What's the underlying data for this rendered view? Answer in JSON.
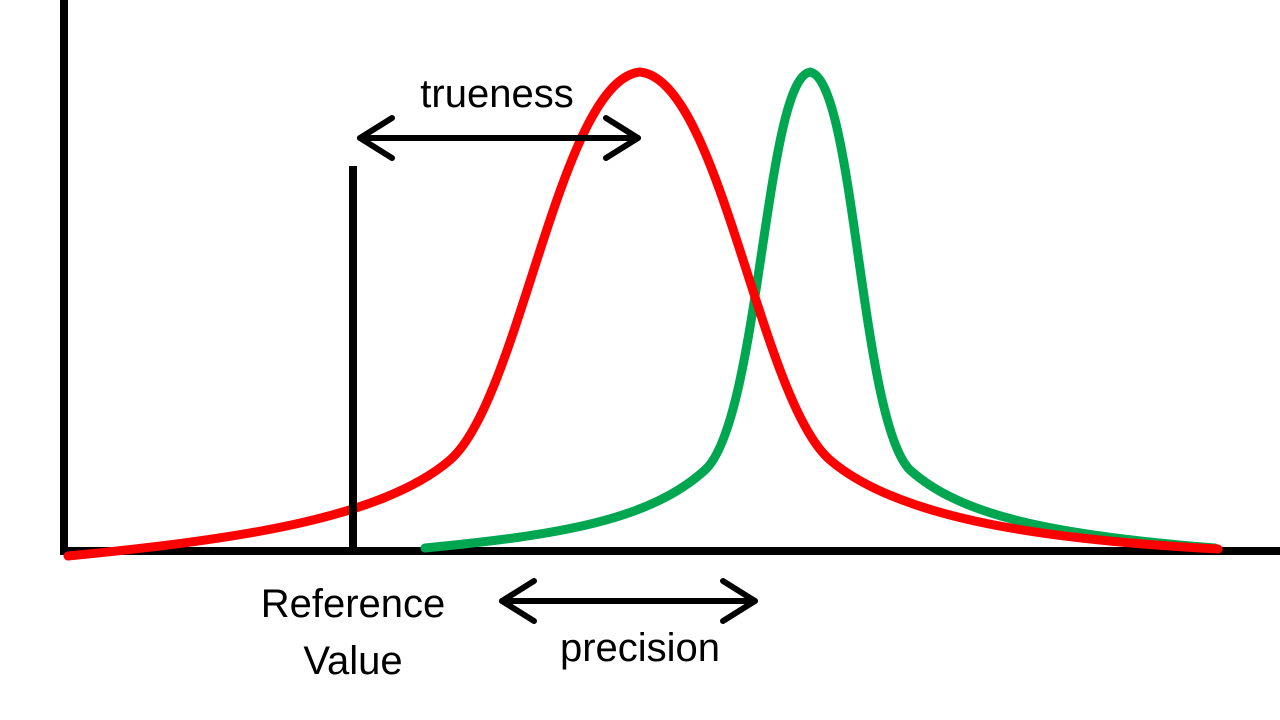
{
  "labels": {
    "trueness": "trueness",
    "precision": "precision",
    "reference_line1": "Reference",
    "reference_line2": "Value"
  },
  "colors": {
    "axis": "#000000",
    "wide_curve": "#ff0000",
    "narrow_curve": "#00a650",
    "arrow": "#000000",
    "background": "#ffffff"
  }
}
